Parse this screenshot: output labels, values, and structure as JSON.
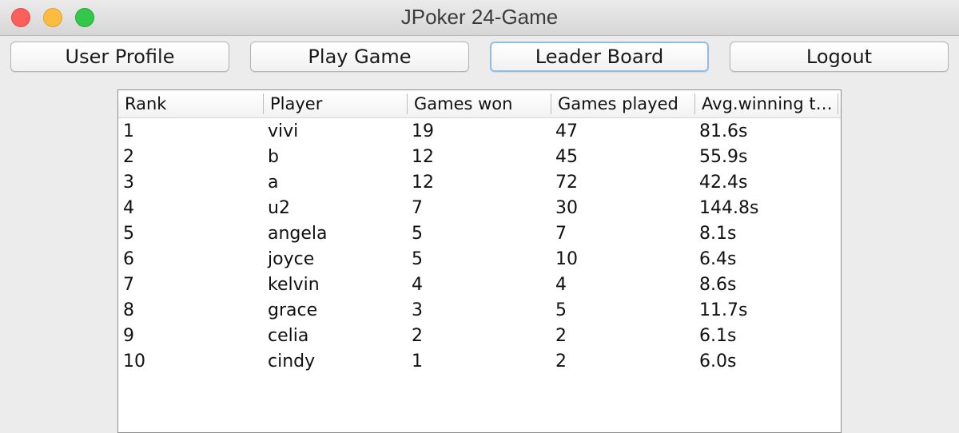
{
  "window": {
    "title": "JPoker 24-Game"
  },
  "toolbar": {
    "user_profile": "User Profile",
    "play_game": "Play Game",
    "leader_board": "Leader Board",
    "logout": "Logout"
  },
  "leaderboard": {
    "columns": [
      "Rank",
      "Player",
      "Games won",
      "Games played",
      "Avg.winning t…"
    ],
    "rows": [
      [
        "1",
        "vivi",
        "19",
        "47",
        "81.6s"
      ],
      [
        "2",
        "b",
        "12",
        "45",
        "55.9s"
      ],
      [
        "3",
        "a",
        "12",
        "72",
        "42.4s"
      ],
      [
        "4",
        "u2",
        "7",
        "30",
        "144.8s"
      ],
      [
        "5",
        "angela",
        "5",
        "7",
        "8.1s"
      ],
      [
        "6",
        "joyce",
        "5",
        "10",
        "6.4s"
      ],
      [
        "7",
        "kelvin",
        "4",
        "4",
        "8.6s"
      ],
      [
        "8",
        "grace",
        "3",
        "5",
        "11.7s"
      ],
      [
        "9",
        "celia",
        "2",
        "2",
        "6.1s"
      ],
      [
        "10",
        "cindy",
        "1",
        "2",
        "6.0s"
      ]
    ]
  }
}
